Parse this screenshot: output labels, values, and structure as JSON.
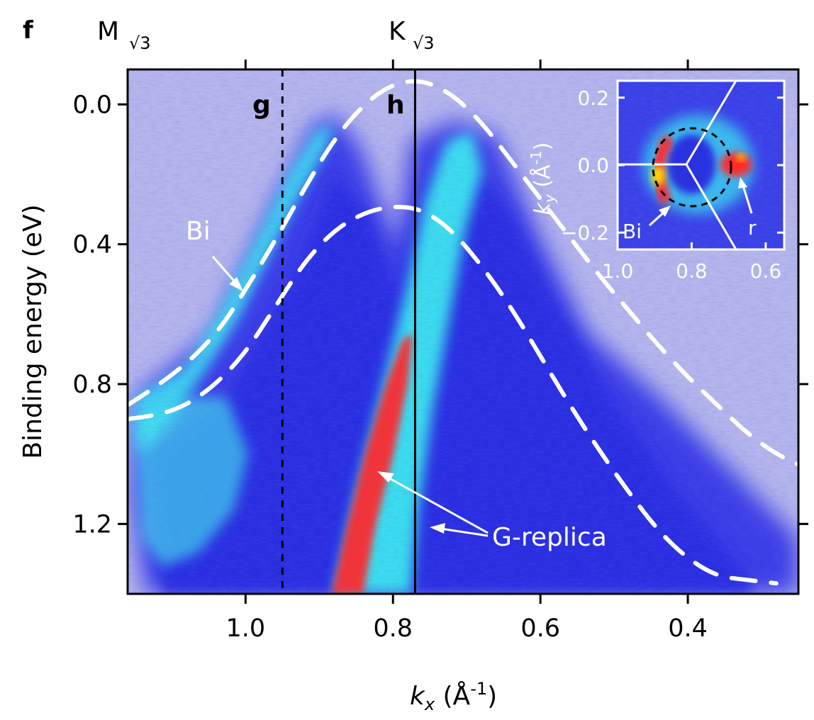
{
  "panel_letter": "f",
  "top_labels": {
    "m_main": "M",
    "m_sub": "√3",
    "k_main": "K",
    "k_sub": "√3"
  },
  "chart_data": [
    {
      "type": "heatmap",
      "description_source": "ARPES intensity map along k_x",
      "xlabel": {
        "main": "k",
        "sub": "x",
        "unit": " (Å",
        "unit_sup": "-1",
        "close": ")"
      },
      "ylabel": "Binding energy (eV)",
      "xlim": [
        1.16,
        0.25
      ],
      "ylim": [
        -0.1,
        1.4
      ],
      "x_ticks": [
        1.0,
        0.8,
        0.6,
        0.4
      ],
      "x_tick_labels": [
        "1.0",
        "0.8",
        "0.6",
        "0.4"
      ],
      "y_ticks": [
        0.0,
        0.4,
        0.8,
        1.2
      ],
      "y_tick_labels": [
        "0.0",
        "0.4",
        "0.8",
        "1.2"
      ],
      "colormap": [
        "#b4b4ec",
        "#2d34e8",
        "#3ef2f2",
        "#ff2020",
        "#ffe000"
      ],
      "cuts": [
        {
          "label": "g",
          "kx": 0.95,
          "style": "dashed",
          "color": "#000000"
        },
        {
          "label": "h",
          "kx": 0.77,
          "style": "solid",
          "color": "#000000"
        }
      ],
      "high_symmetry_points": [
        {
          "label": "M√3",
          "kx": 1.0
        },
        {
          "label": "K√3",
          "kx": 0.8
        }
      ],
      "dashed_bands": [
        {
          "name": "outer-left",
          "points": [
            [
              1.16,
              0.86
            ],
            [
              1.1,
              0.78
            ],
            [
              1.04,
              0.66
            ],
            [
              1.0,
              0.53
            ],
            [
              0.96,
              0.39
            ],
            [
              0.92,
              0.24
            ],
            [
              0.88,
              0.1
            ],
            [
              0.84,
              0.0
            ],
            [
              0.8,
              -0.06
            ],
            [
              0.76,
              -0.07
            ],
            [
              0.72,
              -0.03
            ],
            [
              0.68,
              0.05
            ],
            [
              0.64,
              0.16
            ],
            [
              0.6,
              0.27
            ],
            [
              0.56,
              0.38
            ],
            [
              0.52,
              0.49
            ],
            [
              0.48,
              0.59
            ],
            [
              0.44,
              0.69
            ],
            [
              0.4,
              0.78
            ],
            [
              0.36,
              0.86
            ],
            [
              0.32,
              0.94
            ],
            [
              0.28,
              1.0
            ],
            [
              0.25,
              1.03
            ]
          ]
        },
        {
          "name": "inner",
          "points": [
            [
              1.16,
              0.9
            ],
            [
              1.12,
              0.89
            ],
            [
              1.08,
              0.86
            ],
            [
              1.04,
              0.8
            ],
            [
              1.0,
              0.71
            ],
            [
              0.96,
              0.58
            ],
            [
              0.92,
              0.45
            ],
            [
              0.88,
              0.36
            ],
            [
              0.84,
              0.31
            ],
            [
              0.8,
              0.29
            ],
            [
              0.76,
              0.3
            ],
            [
              0.72,
              0.36
            ],
            [
              0.68,
              0.46
            ],
            [
              0.64,
              0.58
            ],
            [
              0.6,
              0.72
            ],
            [
              0.56,
              0.86
            ],
            [
              0.52,
              0.99
            ],
            [
              0.48,
              1.11
            ],
            [
              0.44,
              1.22
            ],
            [
              0.4,
              1.3
            ],
            [
              0.36,
              1.35
            ],
            [
              0.32,
              1.36
            ],
            [
              0.28,
              1.37
            ]
          ]
        }
      ],
      "annotations": [
        {
          "text": "Bi",
          "color": "#ffffff",
          "at": [
            1.06,
            0.36
          ],
          "arrow_to": [
            1.0,
            0.53
          ]
        },
        {
          "text": "G-replica",
          "color": "#ffffff",
          "at": [
            0.67,
            1.22
          ],
          "arrows_to": [
            [
              0.82,
              1.05
            ],
            [
              0.74,
              1.2
            ]
          ]
        }
      ]
    },
    {
      "type": "heatmap",
      "description_source": "inset Fermi surface map",
      "xlabel": "",
      "ylabel": {
        "main": "k",
        "sub": "y",
        "unit": " (Å",
        "unit_sup": "-1",
        "close": ")"
      },
      "xlim": [
        1.0,
        0.55
      ],
      "ylim": [
        -0.25,
        0.25
      ],
      "x_ticks": [
        1.0,
        0.8,
        0.6
      ],
      "x_tick_labels": [
        "1.0",
        "0.8",
        "0.6"
      ],
      "y_ticks": [
        0.2,
        0.0,
        -0.2
      ],
      "y_tick_labels": [
        "0.2",
        "0.0",
        "−0.2"
      ],
      "tick_label_color": "#ffffff",
      "annotations": [
        {
          "text": "Bi",
          "color": "#ffffff",
          "arrow_to": [
            0.88,
            -0.1
          ]
        },
        {
          "text": "r",
          "color": "#ffffff",
          "arrow_to": [
            0.635,
            -0.02
          ]
        }
      ],
      "features": [
        {
          "name": "dashed-circle",
          "color": "#000000",
          "center": [
            0.81,
            0.0
          ],
          "radius": 0.105
        },
        {
          "name": "bz-boundary",
          "color": "#ffffff"
        }
      ]
    }
  ]
}
